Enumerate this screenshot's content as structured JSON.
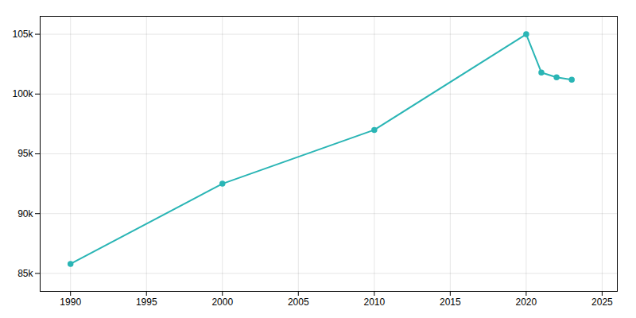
{
  "chart_data": {
    "type": "line",
    "x": [
      1990,
      2000,
      2010,
      2020,
      2021,
      2022,
      2023
    ],
    "values": [
      85800,
      92500,
      97000,
      105000,
      101800,
      101400,
      101200
    ],
    "color": "#2ab5b5",
    "marker": "circle",
    "xlim": [
      1988,
      2026
    ],
    "ylim": [
      83500,
      106500
    ],
    "xticks": [
      1990,
      1995,
      2000,
      2005,
      2010,
      2015,
      2020,
      2025
    ],
    "yticks": [
      {
        "value": 85000,
        "label": "85k"
      },
      {
        "value": 90000,
        "label": "90k"
      },
      {
        "value": 95000,
        "label": "95k"
      },
      {
        "value": 100000,
        "label": "100k"
      },
      {
        "value": 105000,
        "label": "105k"
      }
    ],
    "grid": true
  }
}
